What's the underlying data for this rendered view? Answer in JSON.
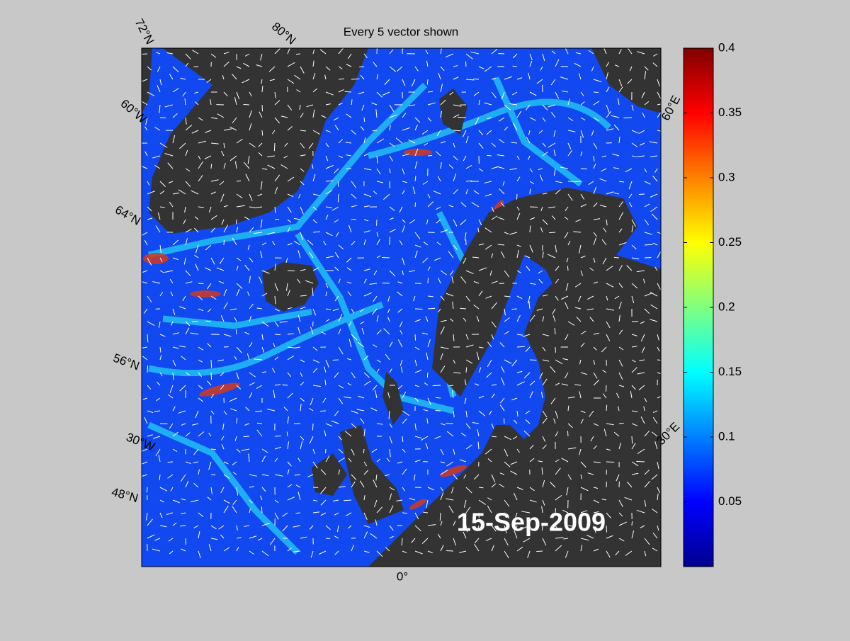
{
  "title": "Every 5 vector shown",
  "date": "15-Sep-2009",
  "graticule_labels": [
    "72°N",
    "80°N",
    "60°W",
    "64°N",
    "56°N",
    "30°W",
    "48°N",
    "0°",
    "60°E",
    "30°E"
  ],
  "colorbar": {
    "colormap": "jet",
    "clim": [
      0,
      0.4
    ],
    "ticks": [
      0.05,
      0.1,
      0.15,
      0.2,
      0.25,
      0.3,
      0.35,
      0.4
    ]
  }
}
